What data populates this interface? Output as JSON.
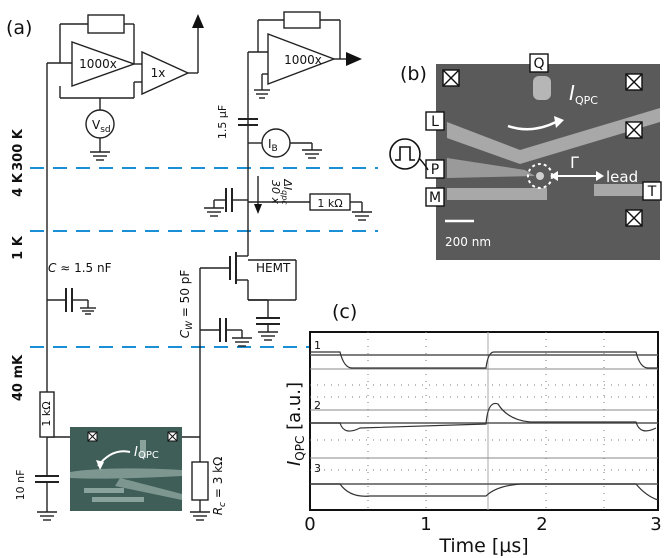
{
  "panel_labels": {
    "a": "(a)",
    "b": "(b)",
    "c": "(c)"
  },
  "temperature_stages": {
    "t300": "300 K",
    "t4": "4 K",
    "t1": "1 K",
    "t40m": "40 mK"
  },
  "circuit": {
    "amp1": "1000x",
    "amp2": "1x",
    "amp3": "1000x",
    "vsd": "V",
    "vsd_sub": "sd",
    "ib": "I",
    "ib_sub": "B",
    "cap_top": "1.5 µF",
    "gain_a": "30 x",
    "gain_b": "ΔI",
    "gain_b_sub": "qpc",
    "r1k_top": "1 kΩ",
    "hemt": "HEMT",
    "cw": "C",
    "cw_sub": "W",
    "cw_val": " = 50 pF",
    "cline": "C",
    "cline_val": " ≈ 1.5 nF",
    "r1k_bottom": "1 kΩ",
    "c10n": "10 nF",
    "rc": "R",
    "rc_sub": "c",
    "rc_val": " = 3 kΩ",
    "inset_label": "I",
    "inset_sub": "QPC"
  },
  "micrograph": {
    "gates": [
      "Q",
      "L",
      "P",
      "M",
      "T"
    ],
    "current_label": "I",
    "current_sub": "QPC",
    "gamma": "Γ",
    "lead": "lead",
    "scale": "200 nm"
  },
  "traces": {
    "labels": [
      "1",
      "2",
      "3"
    ],
    "ylabel": "I",
    "ylabel_sub": "QPC",
    "ylabel_unit": " [a.u.]",
    "xlabel": "Time [µs]",
    "xticks": [
      "0",
      "1",
      "2",
      "3"
    ]
  },
  "colors": {
    "temperature_line": "#1a8fd6",
    "micrograph_bg": "#5a5a5a",
    "inset_bg": "#3f5e58"
  }
}
